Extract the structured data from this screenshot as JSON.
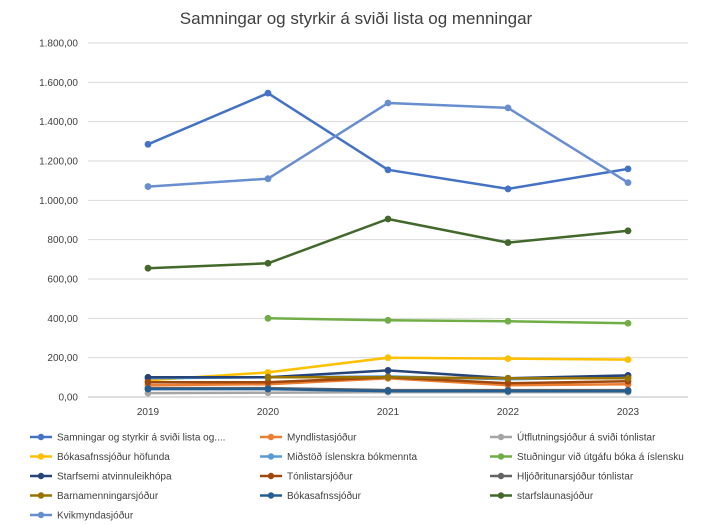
{
  "chart_data": {
    "type": "line",
    "title": "Samningar  og styrkir á sviði lista og menningar",
    "xlabel": "",
    "ylabel": "",
    "categories": [
      "2019",
      "2020",
      "2021",
      "2022",
      "2023"
    ],
    "ylim": [
      0,
      1800
    ],
    "y_ticks": [
      "0,00",
      "200,00",
      "400,00",
      "600,00",
      "800,00",
      "1.000,00",
      "1.200,00",
      "1.400,00",
      "1.600,00",
      "1.800,00"
    ],
    "grid": true,
    "legend_position": "bottom",
    "series": [
      {
        "name": "Samningar og styrkir á sviði lista og....",
        "color": "#4472c4",
        "values": [
          1285,
          1545,
          1155,
          1058,
          1160
        ]
      },
      {
        "name": "Myndlistasjóður",
        "color": "#ed7d31",
        "values": [
          60,
          65,
          95,
          60,
          65
        ]
      },
      {
        "name": "Útflutningsjóður á sviði tónlistar",
        "color": "#a5a5a5",
        "values": [
          20,
          22,
          25,
          25,
          25
        ]
      },
      {
        "name": "Bókasafnssjóður höfunda",
        "color": "#ffc000",
        "values": [
          85,
          125,
          200,
          195,
          190
        ]
      },
      {
        "name": "Miðstöð íslenskra bókmennta",
        "color": "#5b9bd5",
        "values": [
          95,
          100,
          105,
          90,
          100
        ]
      },
      {
        "name": "Stuðningur við útgáfu bóka á íslensku",
        "color": "#70ad47",
        "values": [
          null,
          400,
          390,
          385,
          375
        ]
      },
      {
        "name": "Starfsemi atvinnuleikhópa",
        "color": "#264478",
        "values": [
          100,
          100,
          135,
          95,
          110
        ]
      },
      {
        "name": "Tónlistarsjóður",
        "color": "#9e480e",
        "values": [
          75,
          75,
          100,
          70,
          80
        ]
      },
      {
        "name": "Hljóðritunarsjóður tónlistar",
        "color": "#636363",
        "values": [
          45,
          45,
          35,
          35,
          35
        ]
      },
      {
        "name": "Barnamenningarsjóður",
        "color": "#997300",
        "values": [
          null,
          100,
          100,
          95,
          95
        ]
      },
      {
        "name": "Bókasafnssjóður",
        "color": "#255e91",
        "values": [
          40,
          40,
          30,
          30,
          30
        ]
      },
      {
        "name": "starfslaunasjóður",
        "color": "#43682b",
        "values": [
          655,
          680,
          905,
          785,
          845
        ]
      },
      {
        "name": "Kvikmyndasjóður",
        "color": "#698ed0",
        "values": [
          1070,
          1110,
          1495,
          1470,
          1090
        ]
      }
    ]
  }
}
